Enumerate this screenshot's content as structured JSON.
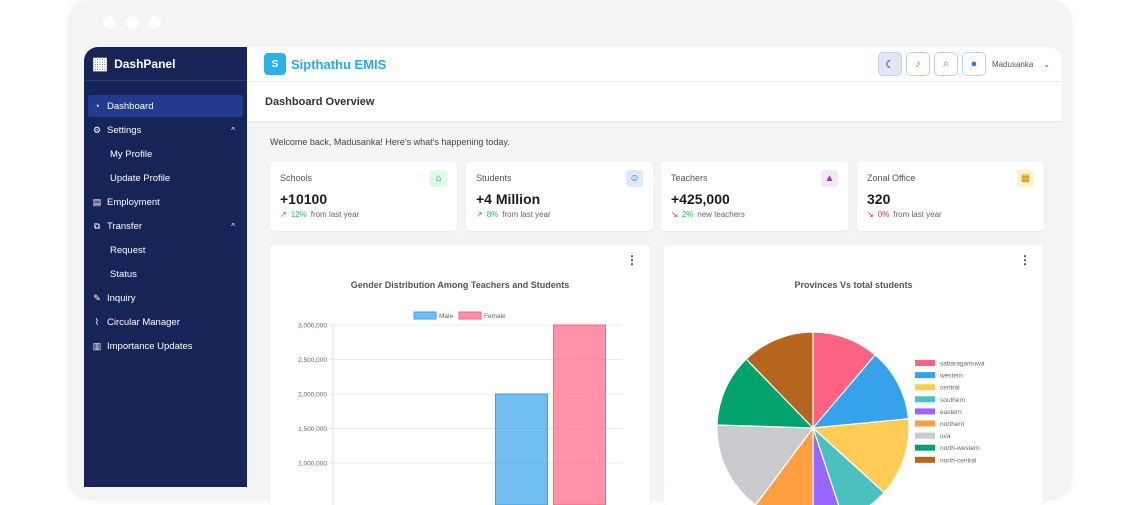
{
  "sidebar": {
    "brand": "DashPanel",
    "items": [
      {
        "label": "Dashboard",
        "icon": "gauge-icon",
        "active": true
      },
      {
        "label": "Settings",
        "icon": "gear-icon",
        "expanded": true
      },
      {
        "label": "My Profile",
        "sub": true
      },
      {
        "label": "Update Profile",
        "sub": true
      },
      {
        "label": "Employment",
        "icon": "document-icon"
      },
      {
        "label": "Transfer",
        "icon": "transfer-icon",
        "expanded": true
      },
      {
        "label": "Request",
        "sub": true
      },
      {
        "label": "Status",
        "sub": true
      },
      {
        "label": "Inquiry",
        "icon": "edit-icon"
      },
      {
        "label": "Circular Manager",
        "icon": "paperclip-icon"
      },
      {
        "label": "Importance Updates",
        "icon": "newspaper-icon"
      }
    ]
  },
  "header": {
    "title": "Sipthathu EMIS",
    "user": "Madusanka",
    "icons": [
      "moon-icon",
      "bell-icon",
      "search-icon",
      "user-icon"
    ]
  },
  "page": {
    "title": "Dashboard Overview",
    "welcome": "Welcome back, Madusanka! Here's what's happening today."
  },
  "cards": [
    {
      "label": "Schools",
      "value": "+10100",
      "pct": "12%",
      "note": "from last year",
      "trend": "up",
      "icon": "school-icon",
      "color": "#16a34a",
      "bg": "#dcfce7"
    },
    {
      "label": "Students",
      "value": "+4 Million",
      "pct": "8%",
      "note": "from last year",
      "trend": "up",
      "icon": "users-icon",
      "color": "#2563eb",
      "bg": "#dbeafe"
    },
    {
      "label": "Teachers",
      "value": "+425,000",
      "pct": "2%",
      "note": "new teachers",
      "trend": "down",
      "icon": "graduation-cap-icon",
      "color": "#9333ea",
      "bg": "#f3e8ff"
    },
    {
      "label": "Zonal Office",
      "value": "320",
      "pct": "0%",
      "note": "from last year",
      "trend": "down",
      "icon": "building-icon",
      "color": "#ca8a04",
      "bg": "#fef3c7"
    }
  ],
  "chart_data": [
    {
      "type": "bar",
      "title": "Gender Distribution Among Teachers and Students",
      "ylim": [
        0,
        3000000
      ],
      "yticks": [
        "1,000,000",
        "1,500,000",
        "2,000,000",
        "2,500,000",
        "3,000,000"
      ],
      "grid": true,
      "legend": "top",
      "series": [
        {
          "name": "Male",
          "color": "#36a2eb",
          "values": [
            null,
            2000000
          ]
        },
        {
          "name": "Female",
          "color": "#ff6384",
          "values": [
            null,
            3000000
          ]
        }
      ]
    },
    {
      "type": "pie",
      "title": "Provinces Vs total students",
      "legend": "right",
      "labels": [
        "sabaragamuwa",
        "western",
        "central",
        "southern",
        "eastern",
        "northern",
        "uva",
        "north-western",
        "north-central"
      ],
      "values": [
        11,
        12,
        13,
        8,
        5,
        10,
        15,
        12,
        12
      ],
      "colors": [
        "#ff6384",
        "#36a2eb",
        "#ffcd56",
        "#4bc0c0",
        "#9966ff",
        "#ff9f40",
        "#c9cbcf",
        "#00a36c",
        "#b5651d"
      ]
    }
  ]
}
